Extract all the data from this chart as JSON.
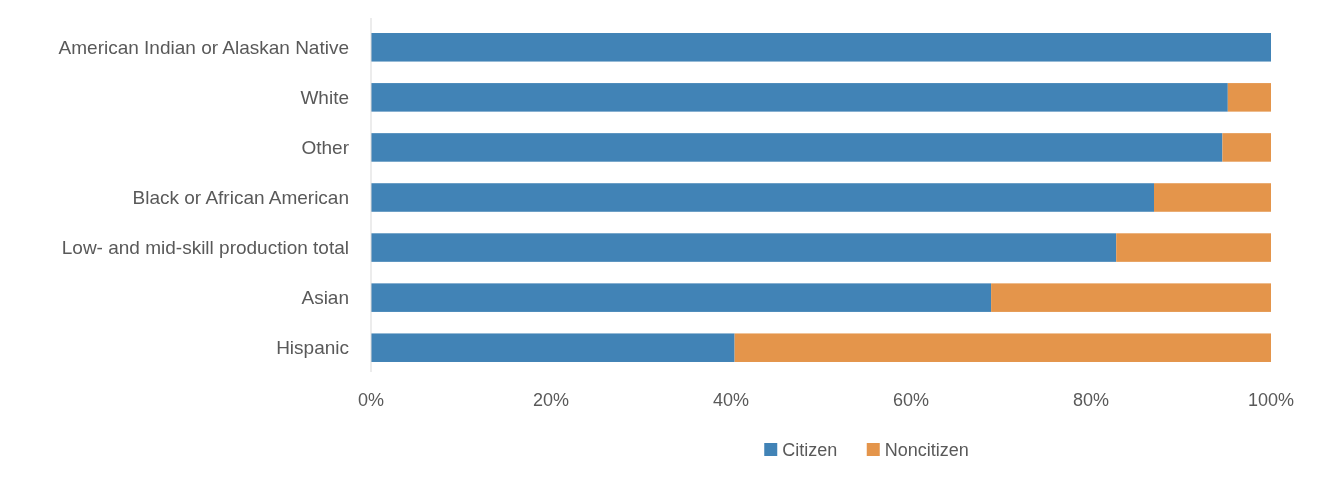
{
  "chart_data": {
    "type": "bar",
    "orientation": "horizontal",
    "stacked": true,
    "categories": [
      "American Indian or Alaskan Native",
      "White",
      "Other",
      "Black or African American",
      "Low- and mid-skill production total",
      "Asian",
      "Hispanic"
    ],
    "series": [
      {
        "name": "Citizen",
        "color": "#4183b6",
        "values": [
          100,
          95.2,
          94.6,
          87.0,
          82.8,
          68.9,
          40.4
        ]
      },
      {
        "name": "Noncitizen",
        "color": "#e4954b",
        "values": [
          0,
          4.8,
          5.4,
          13.0,
          17.2,
          31.1,
          59.6
        ]
      }
    ],
    "xlim": [
      0,
      100
    ],
    "xticks": [
      {
        "value": 0,
        "label": "0%"
      },
      {
        "value": 20,
        "label": "20%"
      },
      {
        "value": 40,
        "label": "40%"
      },
      {
        "value": 60,
        "label": "60%"
      },
      {
        "value": 80,
        "label": "80%"
      },
      {
        "value": 100,
        "label": "100%"
      }
    ],
    "grid": false,
    "legend": "bottom"
  }
}
